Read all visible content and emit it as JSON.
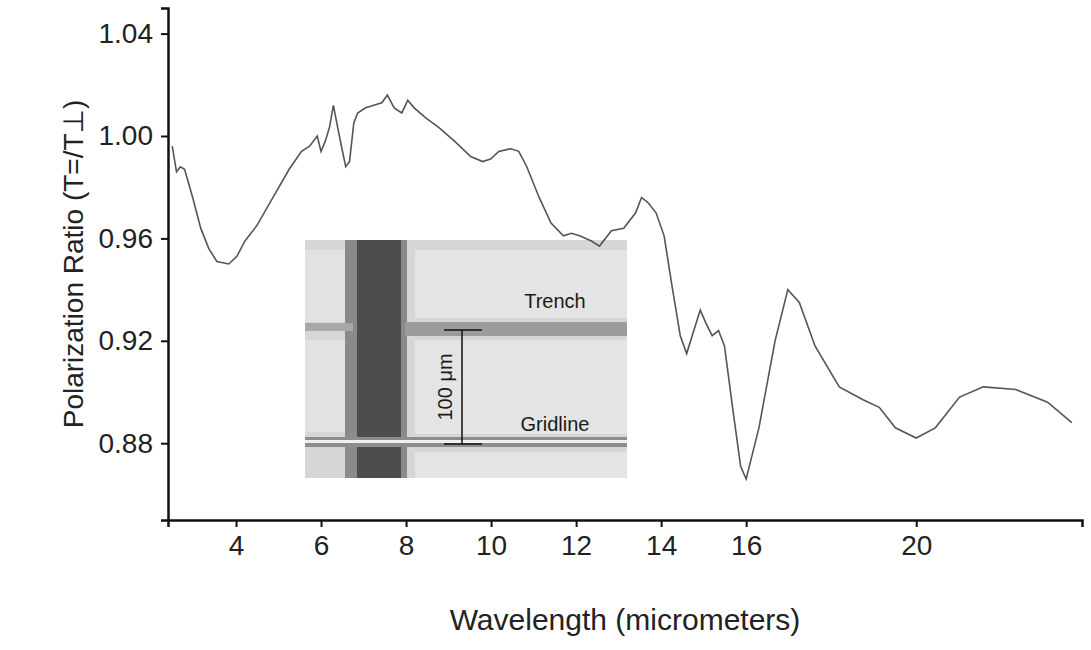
{
  "chart_data": {
    "type": "line",
    "x_label": "Wavelength (micrometers)",
    "y_label": "Polarization Ratio (T=/T⊥)",
    "color": "#555555",
    "grid": false,
    "xlim": [
      2.4,
      23.9
    ],
    "ylim": [
      0.85,
      1.05
    ],
    "xticks": [
      4,
      6,
      8,
      10,
      12,
      14,
      16,
      20
    ],
    "yticks": [
      0.88,
      0.92,
      0.96,
      {
        "value": 1,
        "label": "1.00"
      },
      1.04
    ],
    "x": [
      2.5,
      2.6,
      2.69,
      2.79,
      2.98,
      3.17,
      3.36,
      3.55,
      3.83,
      4.02,
      4.21,
      4.49,
      4.87,
      5.25,
      5.54,
      5.73,
      5.91,
      6.0,
      6.1,
      6.2,
      6.29,
      6.39,
      6.48,
      6.58,
      6.67,
      6.77,
      6.86,
      7.05,
      7.24,
      7.43,
      7.56,
      7.72,
      7.9,
      8.04,
      8.19,
      8.47,
      8.76,
      9.14,
      9.52,
      9.8,
      9.99,
      10.18,
      10.46,
      10.65,
      10.84,
      11.13,
      11.41,
      11.7,
      11.89,
      12.08,
      12.36,
      12.55,
      12.83,
      13.12,
      13.4,
      13.54,
      13.69,
      13.88,
      14.07,
      14.26,
      14.45,
      14.6,
      14.73,
      14.92,
      15.05,
      15.2,
      15.35,
      15.49,
      15.68,
      15.87,
      16.0,
      16.3,
      16.68,
      16.98,
      17.25,
      17.62,
      18.19,
      18.75,
      19.13,
      19.51,
      20.0,
      20.45,
      21.02,
      21.58,
      22.34,
      23.09,
      23.66
    ],
    "values": [
      0.996,
      0.986,
      0.988,
      0.987,
      0.976,
      0.964,
      0.956,
      0.951,
      0.95,
      0.953,
      0.959,
      0.965,
      0.976,
      0.987,
      0.994,
      0.996,
      1.0,
      0.994,
      0.998,
      1.0035,
      1.012,
      1.0035,
      0.996,
      0.988,
      0.99,
      1.005,
      1.009,
      1.011,
      1.012,
      1.013,
      1.016,
      1.011,
      1.009,
      1.014,
      1.011,
      1.007,
      1.0035,
      0.998,
      0.992,
      0.99,
      0.991,
      0.994,
      0.995,
      0.994,
      0.988,
      0.976,
      0.966,
      0.961,
      0.962,
      0.961,
      0.959,
      0.957,
      0.963,
      0.964,
      0.97,
      0.976,
      0.974,
      0.97,
      0.961,
      0.941,
      0.922,
      0.915,
      0.922,
      0.932,
      0.927,
      0.922,
      0.924,
      0.918,
      0.894,
      0.871,
      0.866,
      0.886,
      0.92,
      0.94,
      0.935,
      0.918,
      0.902,
      0.897,
      0.894,
      0.886,
      0.882,
      0.886,
      0.898,
      0.902,
      0.901,
      0.896,
      0.888
    ],
    "annotations": [
      {
        "text": "Trench"
      },
      {
        "text": "100 μm"
      },
      {
        "text": "Gridline"
      }
    ]
  }
}
